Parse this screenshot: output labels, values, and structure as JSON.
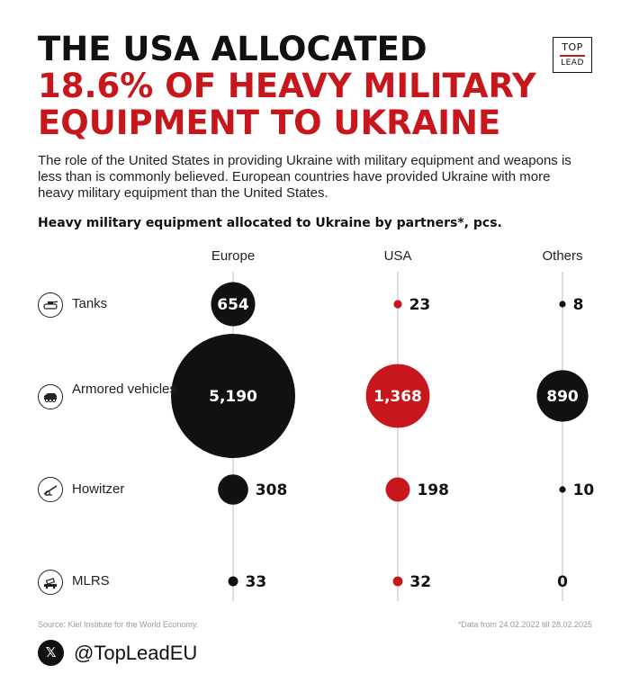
{
  "headline": {
    "line1": "THE USA ALLOCATED",
    "line2": "18.6% OF HEAVY MILITARY",
    "line3": "EQUIPMENT TO UKRAINE"
  },
  "logo": {
    "top": "TOP",
    "bottom": "LEAD"
  },
  "intro": "The role of the United States in providing Ukraine with military equipment and weapons is less than is commonly believed. European countries have provided Ukraine with more heavy military equipment than the United States.",
  "colors": {
    "accent": "#c8161d",
    "dark": "#111111",
    "axis": "#cfcfcf"
  },
  "chart_data": {
    "type": "bubble",
    "title": "Heavy military equipment allocated to Ukraine by partners*, pcs.",
    "columns": [
      "Europe",
      "USA",
      "Others"
    ],
    "column_colors": [
      "#111111",
      "#c8161d",
      "#111111"
    ],
    "rows": [
      {
        "label": "Tanks",
        "icon": "tank-icon"
      },
      {
        "label": "Armored vehicles",
        "icon": "armored-vehicle-icon"
      },
      {
        "label": "Howitzer",
        "icon": "howitzer-icon"
      },
      {
        "label": "MLRS",
        "icon": "mlrs-icon"
      }
    ],
    "series": [
      {
        "name": "Europe",
        "values": [
          654,
          5190,
          308,
          33
        ],
        "labels": [
          "654",
          "5,190",
          "308",
          "33"
        ]
      },
      {
        "name": "USA",
        "values": [
          23,
          1368,
          198,
          32
        ],
        "labels": [
          "23",
          "1,368",
          "198",
          "32"
        ]
      },
      {
        "name": "Others",
        "values": [
          8,
          890,
          10,
          0
        ],
        "labels": [
          "8",
          "890",
          "10",
          "0"
        ]
      }
    ]
  },
  "footer": {
    "source": "Source: Kiel Institute for the World Economy.",
    "note": "*Data from 24.02.2022 till 28.02.2025",
    "x_glyph": "𝕏",
    "handle": "@TopLeadEU"
  }
}
